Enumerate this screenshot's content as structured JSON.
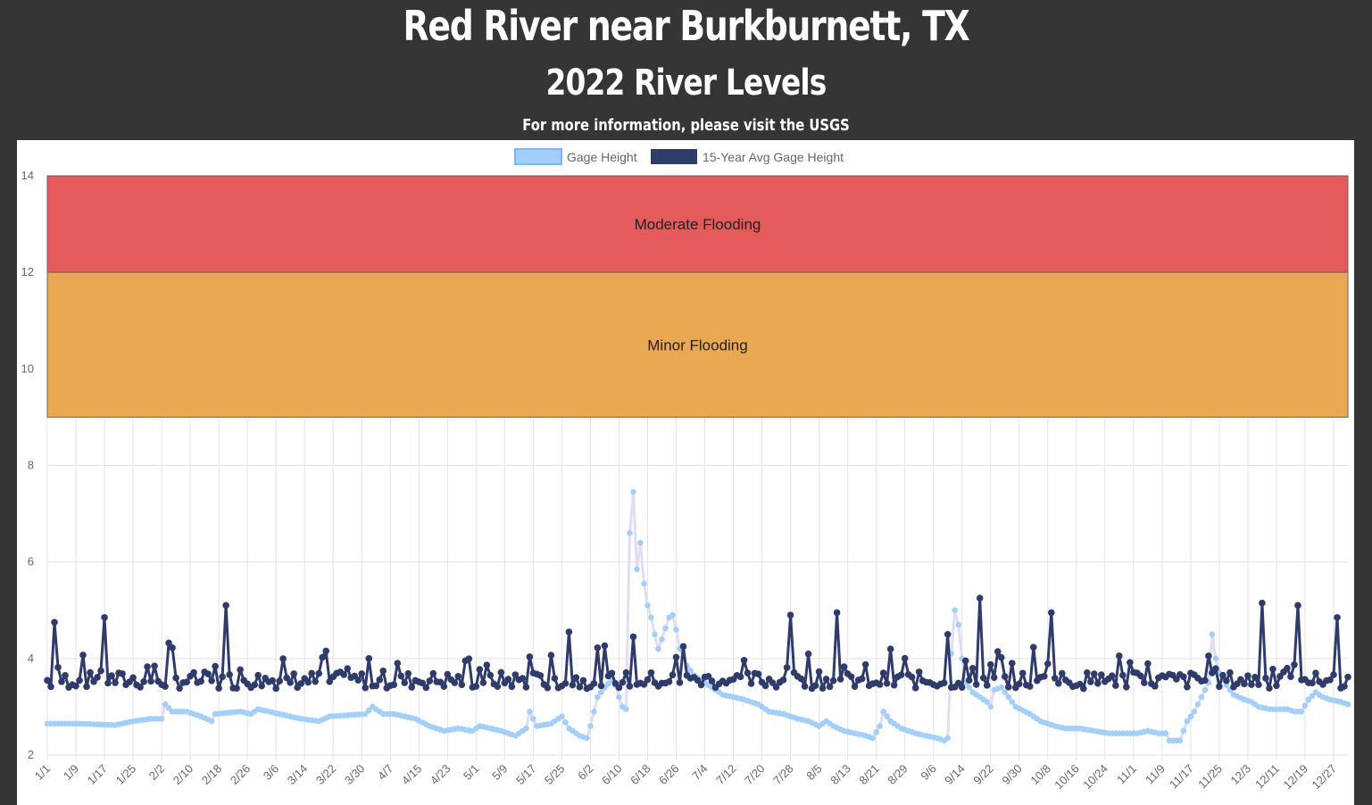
{
  "header": {
    "title": "Red River near Burkburnett, TX",
    "subtitle": "2022 River Levels",
    "info_text": "For more information, please visit the USGS"
  },
  "chart_data": {
    "type": "line",
    "title": "",
    "xlabel": "",
    "ylabel": "",
    "ylim": [
      2,
      14
    ],
    "y_ticks": [
      2,
      4,
      6,
      8,
      10,
      12,
      14
    ],
    "grid": true,
    "legend_position": "top-center",
    "x_tick_labels": [
      "1/1",
      "1/9",
      "1/17",
      "1/25",
      "2/2",
      "2/10",
      "2/18",
      "2/26",
      "3/6",
      "3/14",
      "3/22",
      "3/30",
      "4/7",
      "4/15",
      "4/23",
      "5/1",
      "5/9",
      "5/17",
      "5/25",
      "6/2",
      "6/10",
      "6/18",
      "6/26",
      "7/4",
      "7/12",
      "7/20",
      "7/28",
      "8/5",
      "8/13",
      "8/21",
      "8/29",
      "9/6",
      "9/14",
      "9/22",
      "9/30",
      "10/8",
      "10/16",
      "10/24",
      "11/1",
      "11/9",
      "11/17",
      "11/25",
      "12/3",
      "12/11",
      "12/19",
      "12/27"
    ],
    "x_tick_interval_days": 8,
    "bands": [
      {
        "label": "Moderate Flooding",
        "from": 12,
        "to": 14,
        "color": "#e55b5b"
      },
      {
        "label": "Minor Flooding",
        "from": 9,
        "to": 12,
        "color": "#eaa852"
      }
    ],
    "series": [
      {
        "name": "Gage Height",
        "color": "#a3cffa",
        "line_color": "#e2dcf6",
        "key_points": [
          [
            1,
            2.65
          ],
          [
            10,
            2.65
          ],
          [
            20,
            2.62
          ],
          [
            25,
            2.7
          ],
          [
            30,
            2.75
          ],
          [
            33,
            2.75
          ],
          [
            34,
            3.05
          ],
          [
            36,
            2.9
          ],
          [
            40,
            2.9
          ],
          [
            44,
            2.8
          ],
          [
            47,
            2.7
          ],
          [
            48,
            2.85
          ],
          [
            55,
            2.9
          ],
          [
            58,
            2.85
          ],
          [
            60,
            2.95
          ],
          [
            66,
            2.85
          ],
          [
            72,
            2.75
          ],
          [
            77,
            2.7
          ],
          [
            80,
            2.8
          ],
          [
            90,
            2.85
          ],
          [
            92,
            3.0
          ],
          [
            95,
            2.85
          ],
          [
            98,
            2.85
          ],
          [
            104,
            2.75
          ],
          [
            108,
            2.6
          ],
          [
            112,
            2.5
          ],
          [
            116,
            2.55
          ],
          [
            120,
            2.5
          ],
          [
            122,
            2.6
          ],
          [
            128,
            2.5
          ],
          [
            132,
            2.4
          ],
          [
            135,
            2.55
          ],
          [
            136,
            2.9
          ],
          [
            138,
            2.6
          ],
          [
            142,
            2.65
          ],
          [
            145,
            2.8
          ],
          [
            147,
            2.55
          ],
          [
            150,
            2.4
          ],
          [
            152,
            2.35
          ],
          [
            153,
            2.6
          ],
          [
            155,
            3.2
          ],
          [
            157,
            3.4
          ],
          [
            159,
            3.55
          ],
          [
            160,
            3.45
          ],
          [
            161,
            3.2
          ],
          [
            162,
            3.0
          ],
          [
            163,
            2.95
          ],
          [
            164,
            6.6
          ],
          [
            165,
            7.45
          ],
          [
            166,
            5.85
          ],
          [
            167,
            6.4
          ],
          [
            168,
            5.55
          ],
          [
            169,
            5.1
          ],
          [
            170,
            4.85
          ],
          [
            171,
            4.5
          ],
          [
            172,
            4.2
          ],
          [
            173,
            4.4
          ],
          [
            175,
            4.85
          ],
          [
            176,
            4.9
          ],
          [
            177,
            4.6
          ],
          [
            178,
            4.2
          ],
          [
            180,
            3.85
          ],
          [
            182,
            3.65
          ],
          [
            185,
            3.5
          ],
          [
            188,
            3.35
          ],
          [
            190,
            3.25
          ],
          [
            193,
            3.2
          ],
          [
            196,
            3.15
          ],
          [
            200,
            3.05
          ],
          [
            203,
            2.9
          ],
          [
            207,
            2.85
          ],
          [
            211,
            2.75
          ],
          [
            214,
            2.7
          ],
          [
            217,
            2.6
          ],
          [
            219,
            2.7
          ],
          [
            221,
            2.6
          ],
          [
            224,
            2.5
          ],
          [
            227,
            2.45
          ],
          [
            230,
            2.4
          ],
          [
            232,
            2.35
          ],
          [
            234,
            2.6
          ],
          [
            235,
            2.9
          ],
          [
            237,
            2.7
          ],
          [
            240,
            2.55
          ],
          [
            244,
            2.45
          ],
          [
            248,
            2.38
          ],
          [
            250,
            2.35
          ],
          [
            252,
            2.3
          ],
          [
            253,
            2.35
          ],
          [
            254,
            4.1
          ],
          [
            255,
            5.0
          ],
          [
            256,
            4.7
          ],
          [
            257,
            4.0
          ],
          [
            258,
            3.5
          ],
          [
            260,
            3.3
          ],
          [
            262,
            3.2
          ],
          [
            264,
            3.1
          ],
          [
            265,
            3.0
          ],
          [
            266,
            3.35
          ],
          [
            268,
            3.4
          ],
          [
            270,
            3.2
          ],
          [
            272,
            3.0
          ],
          [
            276,
            2.85
          ],
          [
            279,
            2.7
          ],
          [
            283,
            2.6
          ],
          [
            286,
            2.55
          ],
          [
            290,
            2.55
          ],
          [
            294,
            2.5
          ],
          [
            298,
            2.45
          ],
          [
            302,
            2.45
          ],
          [
            306,
            2.45
          ],
          [
            309,
            2.5
          ],
          [
            312,
            2.45
          ],
          [
            314,
            2.45
          ],
          [
            315,
            2.3
          ],
          [
            318,
            2.3
          ],
          [
            320,
            2.7
          ],
          [
            322,
            2.9
          ],
          [
            324,
            3.2
          ],
          [
            326,
            3.5
          ],
          [
            327,
            4.5
          ],
          [
            328,
            4.0
          ],
          [
            329,
            3.7
          ],
          [
            331,
            3.45
          ],
          [
            333,
            3.25
          ],
          [
            336,
            3.15
          ],
          [
            338,
            3.1
          ],
          [
            340,
            3.0
          ],
          [
            343,
            2.95
          ],
          [
            346,
            2.95
          ],
          [
            348,
            2.95
          ],
          [
            350,
            2.9
          ],
          [
            352,
            2.9
          ],
          [
            354,
            3.15
          ],
          [
            356,
            3.3
          ],
          [
            358,
            3.2
          ],
          [
            360,
            3.15
          ],
          [
            363,
            3.1
          ],
          [
            365,
            3.05
          ]
        ]
      },
      {
        "name": "15-Year Avg Gage Height",
        "color": "#2e3b6b",
        "base_level": 3.55,
        "spike_amplitude": 0.7,
        "seed": 7,
        "peaks": [
          [
            3,
            4.75
          ],
          [
            17,
            4.85
          ],
          [
            51,
            5.1
          ],
          [
            147,
            4.55
          ],
          [
            165,
            4.45
          ],
          [
            179,
            4.25
          ],
          [
            209,
            4.9
          ],
          [
            222,
            4.95
          ],
          [
            253,
            4.5
          ],
          [
            262,
            5.25
          ],
          [
            282,
            4.95
          ],
          [
            341,
            5.15
          ],
          [
            351,
            5.1
          ],
          [
            362,
            4.85
          ]
        ]
      }
    ]
  }
}
